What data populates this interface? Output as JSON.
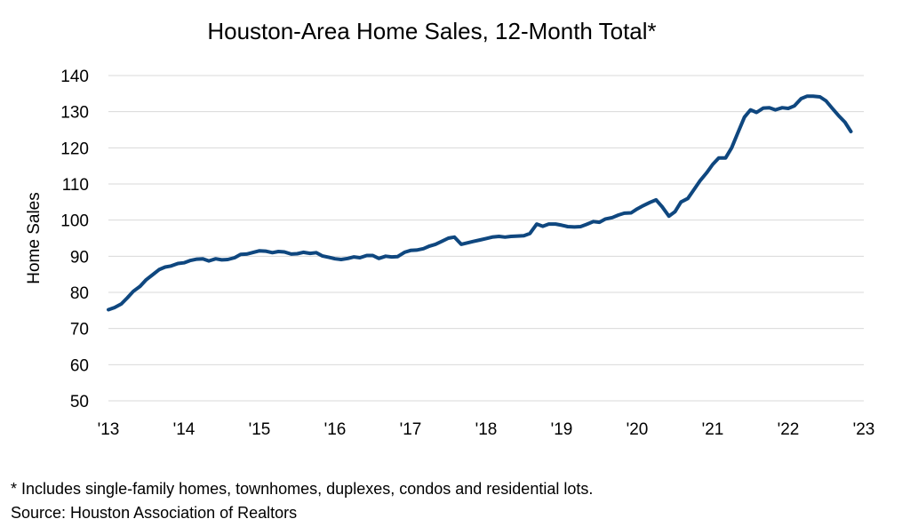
{
  "chart_data": {
    "type": "line",
    "title": "Houston-Area Home Sales, 12-Month Total*",
    "xlabel": "",
    "ylabel": "Home Sales",
    "ylim": [
      50,
      140
    ],
    "yticks": [
      50,
      60,
      70,
      80,
      90,
      100,
      110,
      120,
      130,
      140
    ],
    "xlim": [
      2013,
      2023
    ],
    "xticks": [
      {
        "value": 2013,
        "label": "'13"
      },
      {
        "value": 2014,
        "label": "'14"
      },
      {
        "value": 2015,
        "label": "'15"
      },
      {
        "value": 2016,
        "label": "'16"
      },
      {
        "value": 2017,
        "label": "'17"
      },
      {
        "value": 2018,
        "label": "'18"
      },
      {
        "value": 2019,
        "label": "'19"
      },
      {
        "value": 2020,
        "label": "'20"
      },
      {
        "value": 2021,
        "label": "'21"
      },
      {
        "value": 2022,
        "label": "'22"
      },
      {
        "value": 2023,
        "label": "'23"
      }
    ],
    "grid": true,
    "color": "#0f477f",
    "series": [
      {
        "points": [
          [
            2013.0,
            75.2
          ],
          [
            2013.08,
            75.8
          ],
          [
            2013.17,
            76.8
          ],
          [
            2013.25,
            78.5
          ],
          [
            2013.33,
            80.3
          ],
          [
            2013.42,
            81.7
          ],
          [
            2013.5,
            83.5
          ],
          [
            2013.58,
            84.8
          ],
          [
            2013.67,
            86.3
          ],
          [
            2013.75,
            87.0
          ],
          [
            2013.83,
            87.3
          ],
          [
            2013.92,
            88.0
          ],
          [
            2014.0,
            88.2
          ],
          [
            2014.08,
            88.8
          ],
          [
            2014.17,
            89.2
          ],
          [
            2014.25,
            89.3
          ],
          [
            2014.33,
            88.7
          ],
          [
            2014.42,
            89.3
          ],
          [
            2014.5,
            89.0
          ],
          [
            2014.58,
            89.1
          ],
          [
            2014.67,
            89.6
          ],
          [
            2014.75,
            90.5
          ],
          [
            2014.83,
            90.6
          ],
          [
            2014.92,
            91.1
          ],
          [
            2015.0,
            91.5
          ],
          [
            2015.08,
            91.4
          ],
          [
            2015.17,
            91.0
          ],
          [
            2015.25,
            91.3
          ],
          [
            2015.33,
            91.2
          ],
          [
            2015.42,
            90.6
          ],
          [
            2015.5,
            90.7
          ],
          [
            2015.58,
            91.1
          ],
          [
            2015.67,
            90.8
          ],
          [
            2015.75,
            91.0
          ],
          [
            2015.83,
            90.1
          ],
          [
            2015.92,
            89.7
          ],
          [
            2016.0,
            89.3
          ],
          [
            2016.08,
            89.1
          ],
          [
            2016.17,
            89.4
          ],
          [
            2016.25,
            89.8
          ],
          [
            2016.33,
            89.6
          ],
          [
            2016.42,
            90.2
          ],
          [
            2016.5,
            90.2
          ],
          [
            2016.58,
            89.4
          ],
          [
            2016.67,
            90.0
          ],
          [
            2016.75,
            89.8
          ],
          [
            2016.83,
            89.9
          ],
          [
            2016.92,
            91.1
          ],
          [
            2017.0,
            91.6
          ],
          [
            2017.08,
            91.7
          ],
          [
            2017.17,
            92.1
          ],
          [
            2017.25,
            92.8
          ],
          [
            2017.33,
            93.3
          ],
          [
            2017.42,
            94.2
          ],
          [
            2017.5,
            95.0
          ],
          [
            2017.58,
            95.3
          ],
          [
            2017.67,
            93.3
          ],
          [
            2017.75,
            93.7
          ],
          [
            2017.83,
            94.1
          ],
          [
            2017.92,
            94.5
          ],
          [
            2018.0,
            94.9
          ],
          [
            2018.08,
            95.3
          ],
          [
            2018.17,
            95.5
          ],
          [
            2018.25,
            95.3
          ],
          [
            2018.33,
            95.5
          ],
          [
            2018.42,
            95.6
          ],
          [
            2018.5,
            95.7
          ],
          [
            2018.58,
            96.3
          ],
          [
            2018.67,
            98.9
          ],
          [
            2018.75,
            98.3
          ],
          [
            2018.83,
            98.9
          ],
          [
            2018.92,
            98.9
          ],
          [
            2019.0,
            98.6
          ],
          [
            2019.08,
            98.2
          ],
          [
            2019.17,
            98.1
          ],
          [
            2019.25,
            98.2
          ],
          [
            2019.33,
            98.8
          ],
          [
            2019.42,
            99.6
          ],
          [
            2019.5,
            99.4
          ],
          [
            2019.58,
            100.3
          ],
          [
            2019.67,
            100.7
          ],
          [
            2019.75,
            101.4
          ],
          [
            2019.83,
            101.9
          ],
          [
            2019.92,
            102.0
          ],
          [
            2020.0,
            103.1
          ],
          [
            2020.08,
            104.0
          ],
          [
            2020.17,
            104.9
          ],
          [
            2020.25,
            105.6
          ],
          [
            2020.33,
            103.7
          ],
          [
            2020.42,
            101.1
          ],
          [
            2020.5,
            102.3
          ],
          [
            2020.58,
            105.0
          ],
          [
            2020.67,
            106.0
          ],
          [
            2020.75,
            108.4
          ],
          [
            2020.83,
            110.8
          ],
          [
            2020.92,
            113.1
          ],
          [
            2021.0,
            115.4
          ],
          [
            2021.08,
            117.2
          ],
          [
            2021.17,
            117.2
          ],
          [
            2021.25,
            120.0
          ],
          [
            2021.33,
            124.0
          ],
          [
            2021.42,
            128.5
          ],
          [
            2021.5,
            130.5
          ],
          [
            2021.58,
            129.8
          ],
          [
            2021.67,
            131.0
          ],
          [
            2021.75,
            131.1
          ],
          [
            2021.83,
            130.5
          ],
          [
            2021.92,
            131.1
          ],
          [
            2022.0,
            130.9
          ],
          [
            2022.08,
            131.6
          ],
          [
            2022.17,
            133.6
          ],
          [
            2022.25,
            134.3
          ],
          [
            2022.33,
            134.3
          ],
          [
            2022.42,
            134.1
          ],
          [
            2022.5,
            133.0
          ],
          [
            2022.58,
            131.0
          ],
          [
            2022.67,
            128.8
          ],
          [
            2022.75,
            127.1
          ],
          [
            2022.83,
            124.5
          ]
        ]
      }
    ]
  },
  "footnotes": {
    "note": "* Includes single-family homes, townhomes, duplexes, condos and residential lots.",
    "source": "Source: Houston Association of Realtors"
  }
}
